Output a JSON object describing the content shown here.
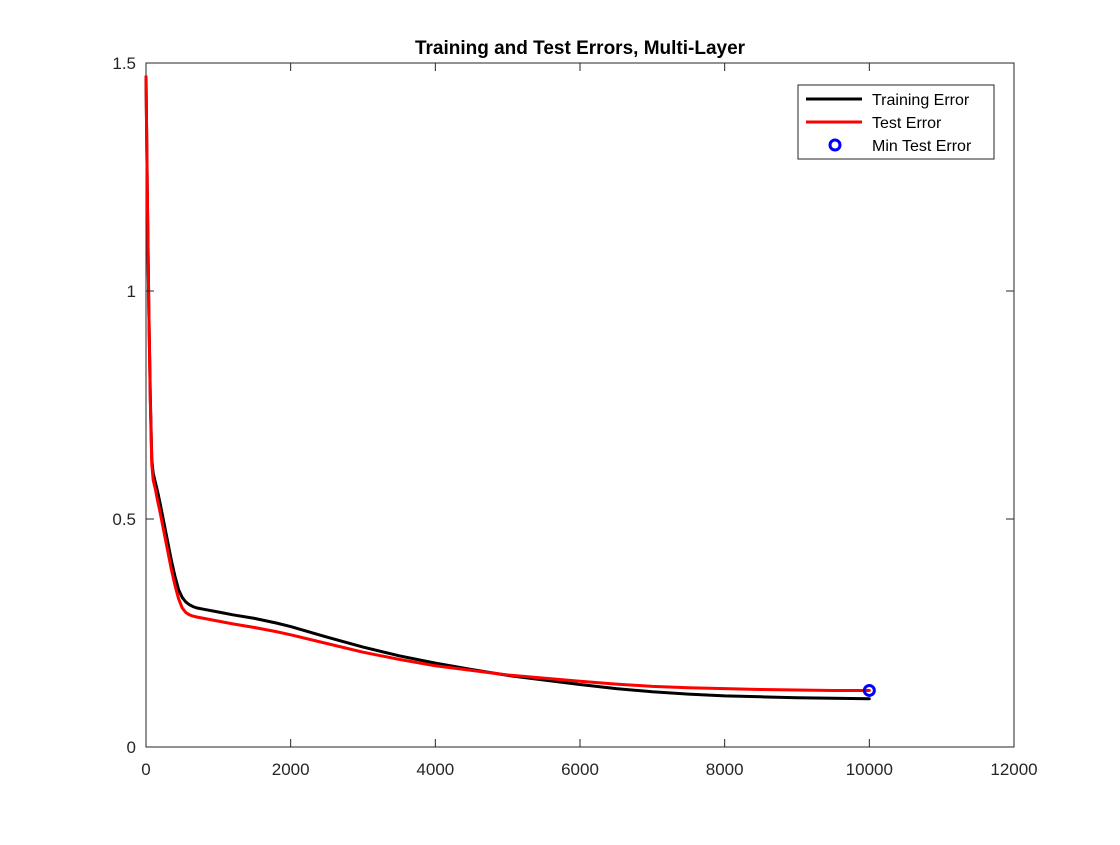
{
  "chart_data": {
    "type": "line",
    "title": "Training and Test Errors, Multi-Layer",
    "xlabel": "",
    "ylabel": "",
    "xlim": [
      0,
      12000
    ],
    "ylim": [
      0,
      1.5
    ],
    "xticks": [
      0,
      2000,
      4000,
      6000,
      8000,
      10000,
      12000
    ],
    "yticks": [
      0,
      0.5,
      1,
      1.5
    ],
    "xtick_labels": [
      "0",
      "2000",
      "4000",
      "6000",
      "8000",
      "10000",
      "12000"
    ],
    "ytick_labels": [
      "0",
      "0.5",
      "1",
      "1.5"
    ],
    "grid": false,
    "legend_position": "top-right",
    "series": [
      {
        "name": "Training Error",
        "color": "#000000",
        "style": "line",
        "x": [
          0,
          20,
          40,
          60,
          80,
          100,
          130,
          160,
          200,
          250,
          300,
          350,
          400,
          450,
          500,
          550,
          600,
          650,
          700,
          800,
          1000,
          1200,
          1500,
          1800,
          2000,
          2500,
          3000,
          3500,
          4000,
          4500,
          5000,
          5500,
          6000,
          6500,
          7000,
          7500,
          8000,
          8500,
          9000,
          9500,
          10000
        ],
        "values": [
          1.47,
          1.2,
          0.95,
          0.77,
          0.63,
          0.6,
          0.58,
          0.56,
          0.53,
          0.49,
          0.45,
          0.41,
          0.375,
          0.345,
          0.328,
          0.318,
          0.312,
          0.308,
          0.305,
          0.302,
          0.296,
          0.29,
          0.282,
          0.272,
          0.264,
          0.241,
          0.219,
          0.2,
          0.184,
          0.17,
          0.157,
          0.147,
          0.137,
          0.128,
          0.121,
          0.116,
          0.112,
          0.11,
          0.108,
          0.107,
          0.106
        ]
      },
      {
        "name": "Test Error",
        "color": "#ff0000",
        "style": "line",
        "x": [
          0,
          20,
          40,
          60,
          80,
          100,
          130,
          160,
          200,
          250,
          300,
          350,
          400,
          450,
          500,
          550,
          600,
          650,
          700,
          800,
          1000,
          1200,
          1500,
          1800,
          2000,
          2500,
          3000,
          3500,
          4000,
          4500,
          5000,
          5500,
          6000,
          6500,
          7000,
          7500,
          8000,
          8500,
          9000,
          9500,
          10000
        ],
        "values": [
          1.47,
          1.2,
          0.95,
          0.76,
          0.62,
          0.585,
          0.565,
          0.54,
          0.51,
          0.47,
          0.43,
          0.39,
          0.355,
          0.325,
          0.305,
          0.295,
          0.29,
          0.287,
          0.285,
          0.282,
          0.276,
          0.27,
          0.262,
          0.253,
          0.246,
          0.227,
          0.208,
          0.192,
          0.178,
          0.168,
          0.158,
          0.151,
          0.144,
          0.138,
          0.133,
          0.13,
          0.128,
          0.126,
          0.125,
          0.124,
          0.124
        ]
      },
      {
        "name": "Min Test Error",
        "color": "#0000ff",
        "style": "marker-circle",
        "x": [
          10000
        ],
        "values": [
          0.124
        ]
      }
    ]
  }
}
